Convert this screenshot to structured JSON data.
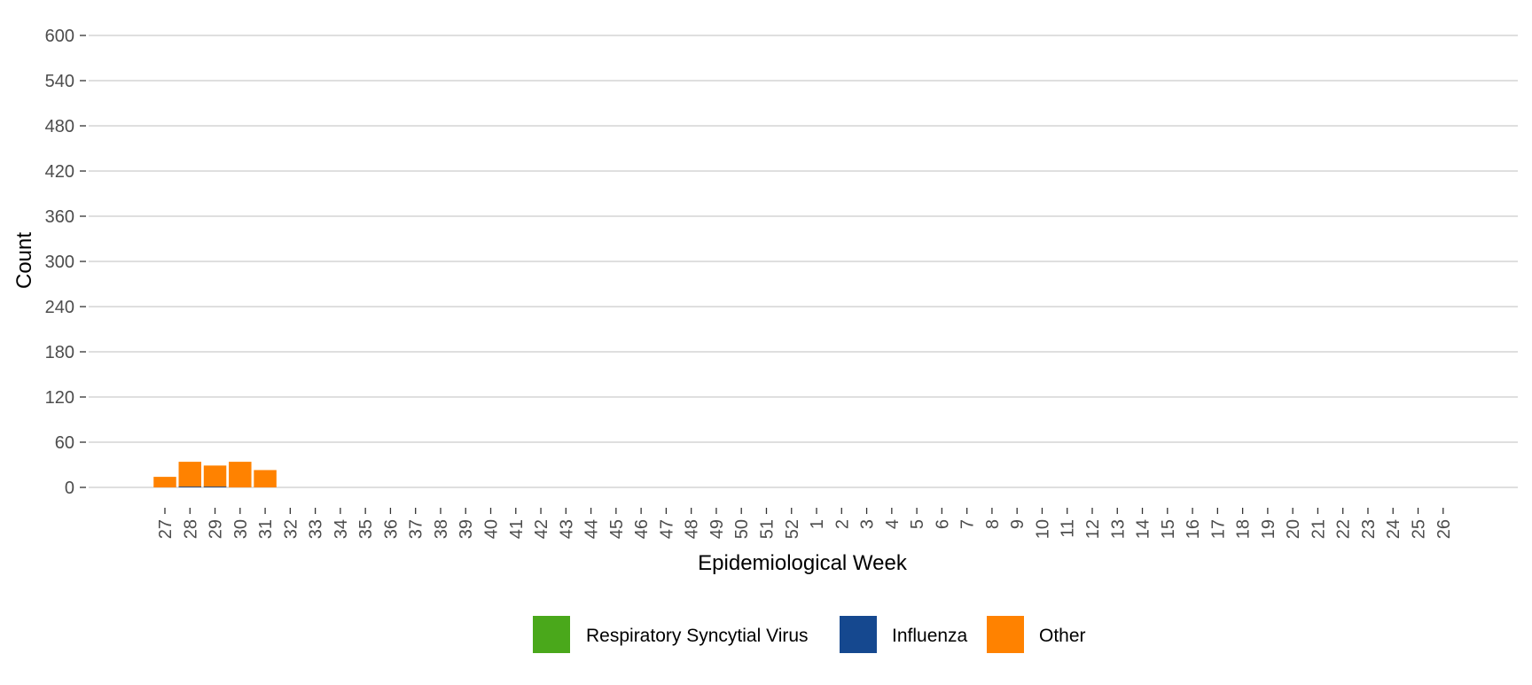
{
  "chart_data": {
    "type": "bar",
    "stacked": true,
    "title": "",
    "xlabel": "Epidemiological Week",
    "ylabel": "Count",
    "ylim": [
      0,
      600
    ],
    "yticks": [
      0,
      60,
      120,
      180,
      240,
      300,
      360,
      420,
      480,
      540,
      600
    ],
    "grid": "horizontal",
    "legend_position": "bottom",
    "categories": [
      "27",
      "28",
      "29",
      "30",
      "31",
      "32",
      "33",
      "34",
      "35",
      "36",
      "37",
      "38",
      "39",
      "40",
      "41",
      "42",
      "43",
      "44",
      "45",
      "46",
      "47",
      "48",
      "49",
      "50",
      "51",
      "52",
      "1",
      "2",
      "3",
      "4",
      "5",
      "6",
      "7",
      "8",
      "9",
      "10",
      "11",
      "12",
      "13",
      "14",
      "15",
      "16",
      "17",
      "18",
      "19",
      "20",
      "21",
      "22",
      "23",
      "24",
      "25",
      "26"
    ],
    "series": [
      {
        "name": "Respiratory Syncytial Virus",
        "color": "#4aa81b",
        "values": [
          0,
          0,
          0,
          0,
          0,
          0,
          0,
          0,
          0,
          0,
          0,
          0,
          0,
          0,
          0,
          0,
          0,
          0,
          0,
          0,
          0,
          0,
          0,
          0,
          0,
          0,
          0,
          0,
          0,
          0,
          0,
          0,
          0,
          0,
          0,
          0,
          0,
          0,
          0,
          0,
          0,
          0,
          0,
          0,
          0,
          0,
          0,
          0,
          0,
          0,
          0,
          0
        ]
      },
      {
        "name": "Influenza",
        "color": "#15488f",
        "values": [
          0,
          1,
          1,
          0,
          0,
          0,
          0,
          0,
          0,
          0,
          0,
          0,
          0,
          0,
          0,
          0,
          0,
          0,
          0,
          0,
          0,
          0,
          0,
          0,
          0,
          0,
          0,
          0,
          0,
          0,
          0,
          0,
          0,
          0,
          0,
          0,
          0,
          0,
          0,
          0,
          0,
          0,
          0,
          0,
          0,
          0,
          0,
          0,
          0,
          0,
          0,
          0
        ]
      },
      {
        "name": "Other",
        "color": "#ff8200",
        "values": [
          14,
          33,
          28,
          34,
          23,
          0,
          0,
          0,
          0,
          0,
          0,
          0,
          0,
          0,
          0,
          0,
          0,
          0,
          0,
          0,
          0,
          0,
          0,
          0,
          0,
          0,
          0,
          0,
          0,
          0,
          0,
          0,
          0,
          0,
          0,
          0,
          0,
          0,
          0,
          0,
          0,
          0,
          0,
          0,
          0,
          0,
          0,
          0,
          0,
          0,
          0,
          0
        ]
      }
    ]
  }
}
